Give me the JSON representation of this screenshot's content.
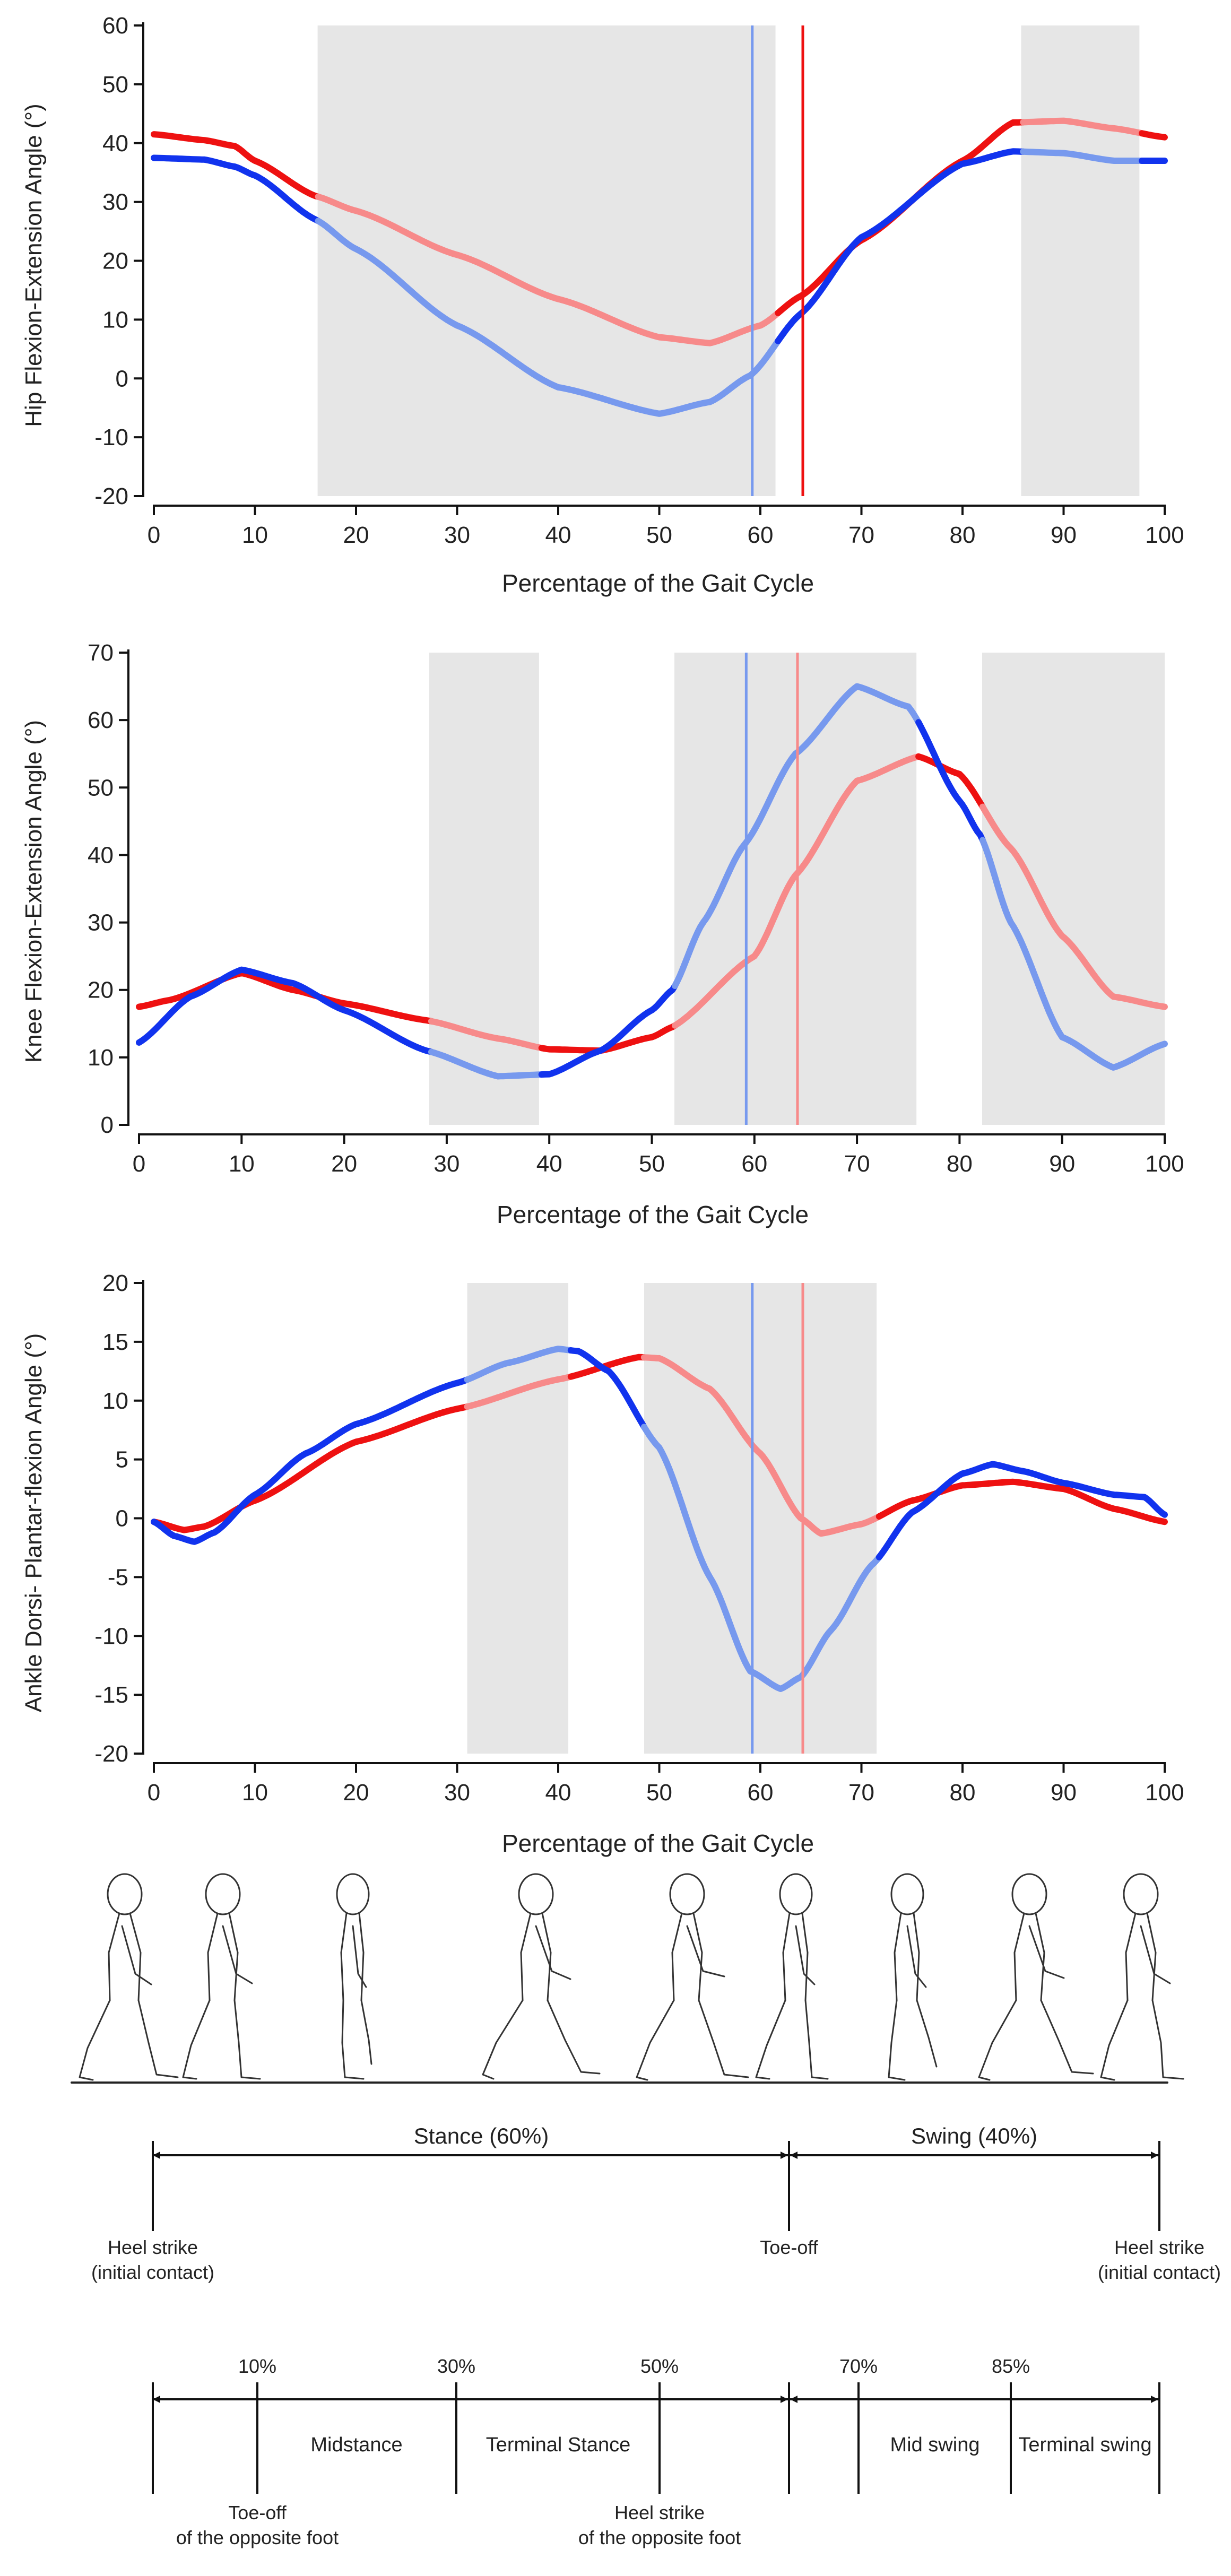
{
  "colors": {
    "red": "#ee1111",
    "blue": "#1133ee",
    "red_light": "#f78a8a",
    "blue_light": "#7799ee",
    "shade": "#e6e6e6",
    "axis": "#111111"
  },
  "chart_data": [
    {
      "type": "line",
      "title": "",
      "xlabel": "Percentage of the Gait Cycle",
      "ylabel": "Hip Flexion-Extension Angle (°)",
      "xlim": [
        0,
        100
      ],
      "ylim": [
        -20,
        60
      ],
      "xticks": [
        "0",
        "10",
        "20",
        "30",
        "40",
        "50",
        "60",
        "70",
        "80",
        "90",
        "100"
      ],
      "yticks": [
        "-20",
        "-10",
        "0",
        "10",
        "20",
        "30",
        "40",
        "50",
        "60"
      ],
      "shaded_regions": [
        [
          16.2,
          61.5
        ],
        [
          85.8,
          97.5
        ]
      ],
      "vlines": [
        {
          "x": 59.2,
          "color": "blue"
        },
        {
          "x": 64.2,
          "color": "red"
        }
      ],
      "series": [
        {
          "name": "red",
          "x": [
            0,
            5,
            8,
            10,
            16,
            20,
            30,
            40,
            50,
            55,
            60,
            64,
            70,
            80,
            85,
            90,
            95,
            100
          ],
          "values": [
            41.5,
            40.5,
            39.5,
            37,
            31,
            28.5,
            21,
            13.5,
            7,
            6,
            9,
            14,
            23.5,
            37,
            43.5,
            43.8,
            42.5,
            41
          ]
        },
        {
          "name": "blue",
          "x": [
            0,
            5,
            8,
            10,
            16,
            20,
            30,
            40,
            50,
            55,
            59,
            64,
            70,
            80,
            85,
            90,
            95,
            100
          ],
          "values": [
            37.5,
            37.2,
            36,
            34.5,
            27,
            22,
            9,
            -1.5,
            -6,
            -4,
            0.5,
            11,
            24,
            36.5,
            38.6,
            38.3,
            37,
            37
          ]
        }
      ]
    },
    {
      "type": "line",
      "title": "",
      "xlabel": "Percentage of the Gait Cycle",
      "ylabel": "Knee Flexion-Extension Angle (°)",
      "xlim": [
        0,
        100
      ],
      "ylim": [
        0,
        70
      ],
      "xticks": [
        "0",
        "10",
        "20",
        "30",
        "40",
        "50",
        "60",
        "70",
        "80",
        "90",
        "100"
      ],
      "yticks": [
        "0",
        "10",
        "20",
        "30",
        "40",
        "50",
        "60",
        "70"
      ],
      "shaded_regions": [
        [
          28.3,
          39
        ],
        [
          52.2,
          75.8
        ],
        [
          82.2,
          100
        ]
      ],
      "vlines": [
        {
          "x": 59.2,
          "color": "blue"
        },
        {
          "x": 64.2,
          "color": "red"
        }
      ],
      "series": [
        {
          "name": "red",
          "x": [
            0,
            3,
            10,
            15,
            20,
            28,
            35,
            40,
            45,
            50,
            52,
            60,
            64,
            70,
            76,
            80,
            85,
            90,
            95,
            100
          ],
          "values": [
            17.5,
            18.5,
            22.5,
            20,
            18,
            15.5,
            12.8,
            11.2,
            11,
            13,
            14.5,
            25,
            37,
            51,
            54.6,
            52,
            41,
            28,
            19,
            17.5
          ]
        },
        {
          "name": "blue",
          "x": [
            0,
            5,
            10,
            15,
            20,
            28,
            35,
            40,
            45,
            50,
            52,
            55,
            59,
            64,
            70,
            75,
            80,
            82,
            85,
            90,
            95,
            100
          ],
          "values": [
            12.2,
            19,
            23,
            21,
            17,
            11,
            7.2,
            7.5,
            11,
            17,
            20,
            30,
            41.5,
            55,
            65,
            62,
            48,
            43,
            30,
            13,
            8.5,
            12
          ]
        }
      ]
    },
    {
      "type": "line",
      "title": "",
      "xlabel": "Percentage of the Gait Cycle",
      "ylabel": "Ankle Dorsi- Plantar-flexion Angle (°)",
      "xlim": [
        0,
        100
      ],
      "ylim": [
        -20,
        20
      ],
      "xticks": [
        "0",
        "10",
        "20",
        "30",
        "40",
        "50",
        "60",
        "70",
        "80",
        "90",
        "100"
      ],
      "yticks": [
        "-20",
        "-15",
        "-10",
        "-5",
        "0",
        "5",
        "10",
        "15",
        "20"
      ],
      "shaded_regions": [
        [
          31,
          41
        ],
        [
          48.5,
          71.5
        ]
      ],
      "vlines": [
        {
          "x": 59.2,
          "color": "blue"
        },
        {
          "x": 64.2,
          "color": "red"
        }
      ],
      "series": [
        {
          "name": "red",
          "x": [
            0,
            3,
            5,
            10,
            20,
            30,
            40,
            48,
            50,
            55,
            60,
            64,
            66,
            70,
            75,
            80,
            85,
            90,
            95,
            100
          ],
          "values": [
            -0.3,
            -1,
            -0.7,
            1.5,
            6.5,
            9.3,
            11.8,
            13.7,
            13.6,
            11,
            5.5,
            0,
            -1.3,
            -0.5,
            1.5,
            2.8,
            3.1,
            2.5,
            0.8,
            -0.3
          ]
        },
        {
          "name": "blue",
          "x": [
            0,
            2,
            4,
            6,
            10,
            15,
            20,
            30,
            35,
            40,
            42,
            45,
            50,
            55,
            59,
            62,
            64,
            67,
            71,
            75,
            80,
            83,
            86,
            90,
            95,
            98,
            100
          ],
          "values": [
            -0.3,
            -1.5,
            -2,
            -1.2,
            2,
            5.5,
            8,
            11.5,
            13.2,
            14.4,
            14.2,
            12.5,
            6,
            -5,
            -13,
            -14.5,
            -13.5,
            -9.5,
            -4,
            0.5,
            3.8,
            4.6,
            4,
            3,
            2,
            1.8,
            0.3
          ]
        }
      ]
    }
  ],
  "timeline": {
    "stance_label": "Stance (60%)",
    "swing_label": "Swing (40%)",
    "heel_strike_start": [
      "Heel strike",
      "(initial contact)"
    ],
    "toe_off": "Toe-off",
    "heel_strike_end": [
      "Heel strike",
      "(initial contact)"
    ]
  },
  "phases": {
    "pct_10": "10%",
    "pct_30": "30%",
    "pct_50": "50%",
    "pct_70": "70%",
    "pct_85": "85%",
    "midstance": "Midstance",
    "terminal_stance": "Terminal Stance",
    "mid_swing": "Mid swing",
    "terminal_swing": "Terminal swing",
    "toe_off_opposite": [
      "Toe-off",
      "of the opposite foot"
    ],
    "heel_strike_opposite": [
      "Heel strike",
      "of the opposite foot"
    ]
  }
}
